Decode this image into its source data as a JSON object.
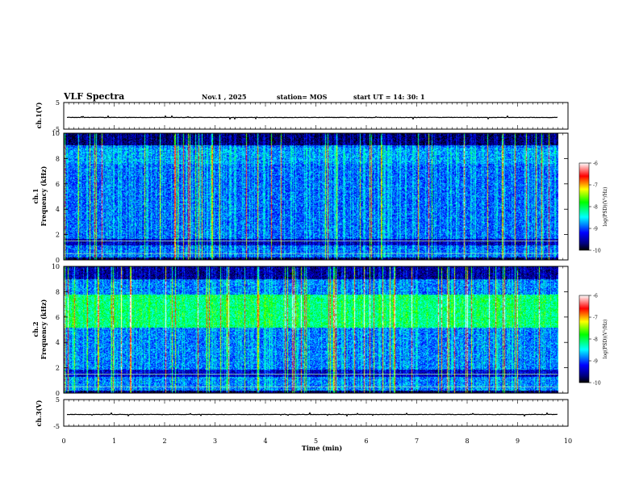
{
  "header": {
    "title": "VLF Spectra",
    "date": "Nov.1 , 2025",
    "station": "station= MOS",
    "start": "start UT = 14: 30: 1"
  },
  "chart_data": [
    {
      "type": "line",
      "name": "ch1-waveform",
      "ylabel": "ch.1(V)",
      "ylim": [
        -5,
        5
      ],
      "yticks": [
        "5",
        "-5"
      ],
      "xlim": [
        0,
        10
      ],
      "baseline": -0.6
    },
    {
      "type": "heatmap",
      "name": "ch1-spectrogram",
      "ylabel": "ch.1 Frequency (kHz)",
      "ylim": [
        0,
        10
      ],
      "yticks": [
        "0",
        "2",
        "4",
        "6",
        "8",
        "10"
      ],
      "xlim": [
        0,
        10
      ],
      "data_end_min": 9.8,
      "colorbar": {
        "label": "log(PSD)(V²/Hz)",
        "range": [
          -10,
          -6
        ],
        "ticks": [
          "-6",
          "-7",
          "-8",
          "-9",
          "-10"
        ]
      }
    },
    {
      "type": "heatmap",
      "name": "ch2-spectrogram",
      "ylabel": "ch.2 Frequency (kHz)",
      "ylim": [
        0,
        10
      ],
      "yticks": [
        "0",
        "2",
        "4",
        "6",
        "8",
        "10"
      ],
      "xlim": [
        0,
        10
      ],
      "data_end_min": 9.8,
      "colorbar": {
        "label": "log(PSD)(V²/Hz)",
        "range": [
          -10,
          -6
        ],
        "ticks": [
          "-6",
          "-7",
          "-8",
          "-9",
          "-10"
        ]
      }
    },
    {
      "type": "line",
      "name": "ch3-waveform",
      "ylabel": "ch.3(V)",
      "ylim": [
        -5,
        5
      ],
      "yticks": [
        "5",
        "-5"
      ],
      "xlim": [
        0,
        10
      ],
      "baseline": -0.6
    }
  ],
  "xaxis": {
    "label": "Time (min)",
    "ticks": [
      "0",
      "1",
      "2",
      "3",
      "4",
      "5",
      "6",
      "7",
      "8",
      "9",
      "10"
    ]
  },
  "labels": {
    "ch1_axis": "ch.1(V)",
    "ch1_freq_line1": "ch.1",
    "ch1_freq_line2": "Frequency (kHz)",
    "ch2_freq_line1": "ch.2",
    "ch2_freq_line2": "Frequency (kHz)",
    "ch3_axis": "ch.3(V)",
    "colorbar_label": "log(PSD)(V²/Hz)"
  }
}
